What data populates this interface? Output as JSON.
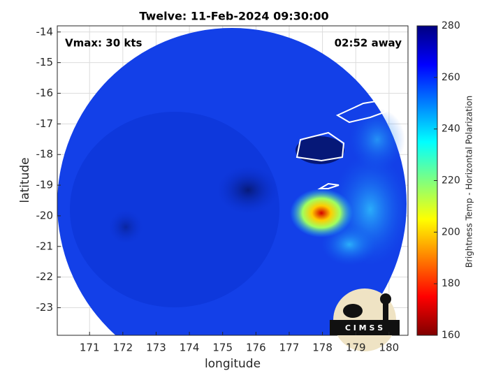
{
  "chart_data": {
    "type": "map",
    "title": "Twelve: 11-Feb-2024 09:30:00",
    "annotations": [
      "Vmax: 30 kts",
      "02:52 away"
    ],
    "xlabel": "longitude",
    "ylabel": "latitude",
    "xlim": [
      170.03,
      180.57
    ],
    "xticks": [
      171,
      172,
      173,
      174,
      175,
      176,
      177,
      178,
      179,
      180
    ],
    "ylim": [
      -23.9,
      -13.8
    ],
    "yticks": [
      -14,
      -15,
      -16,
      -17,
      -18,
      -19,
      -20,
      -21,
      -22,
      -23
    ],
    "grid": true,
    "colorbar": {
      "label": "Brightness Temp - Horizontal Polarization",
      "clim": [
        160,
        280
      ],
      "ticks": [
        160,
        180,
        200,
        220,
        240,
        260,
        280
      ],
      "colormap": "jet"
    },
    "logo_text": "C I M S S"
  }
}
